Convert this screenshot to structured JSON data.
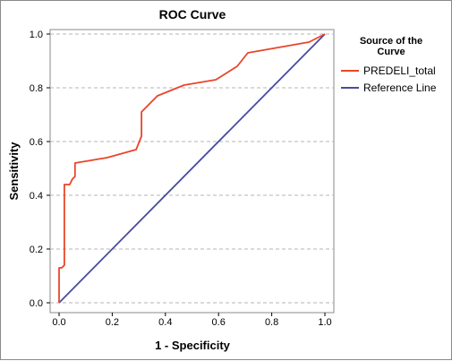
{
  "chart_data": {
    "type": "line",
    "title": "ROC Curve",
    "xlabel": "1 - Specificity",
    "ylabel": "Sensitivity",
    "xlim": [
      0.0,
      1.0
    ],
    "ylim": [
      0.0,
      1.0
    ],
    "x_ticks": [
      "0.0",
      "0.2",
      "0.4",
      "0.6",
      "0.8",
      "1.0"
    ],
    "y_ticks": [
      "0.0",
      "0.2",
      "0.4",
      "0.6",
      "0.8",
      "1.0"
    ],
    "grid": "horizontal dashed",
    "legend": {
      "title_lines": [
        "Source of the",
        "Curve"
      ],
      "placement": "right"
    },
    "series": [
      {
        "name": "PREDELI_total",
        "color": "#e8462a",
        "x": [
          0.0,
          0.0,
          0.01,
          0.02,
          0.02,
          0.03,
          0.04,
          0.05,
          0.06,
          0.06,
          0.18,
          0.29,
          0.31,
          0.31,
          0.33,
          0.35,
          0.37,
          0.47,
          0.59,
          0.67,
          0.71,
          0.94,
          1.0
        ],
        "y": [
          0.0,
          0.13,
          0.13,
          0.14,
          0.44,
          0.44,
          0.44,
          0.46,
          0.47,
          0.52,
          0.54,
          0.57,
          0.62,
          0.71,
          0.73,
          0.75,
          0.77,
          0.81,
          0.83,
          0.88,
          0.93,
          0.97,
          1.0
        ]
      },
      {
        "name": "Reference Line",
        "color": "#4a4aa0",
        "x": [
          0.0,
          1.0
        ],
        "y": [
          0.0,
          1.0
        ]
      }
    ]
  }
}
